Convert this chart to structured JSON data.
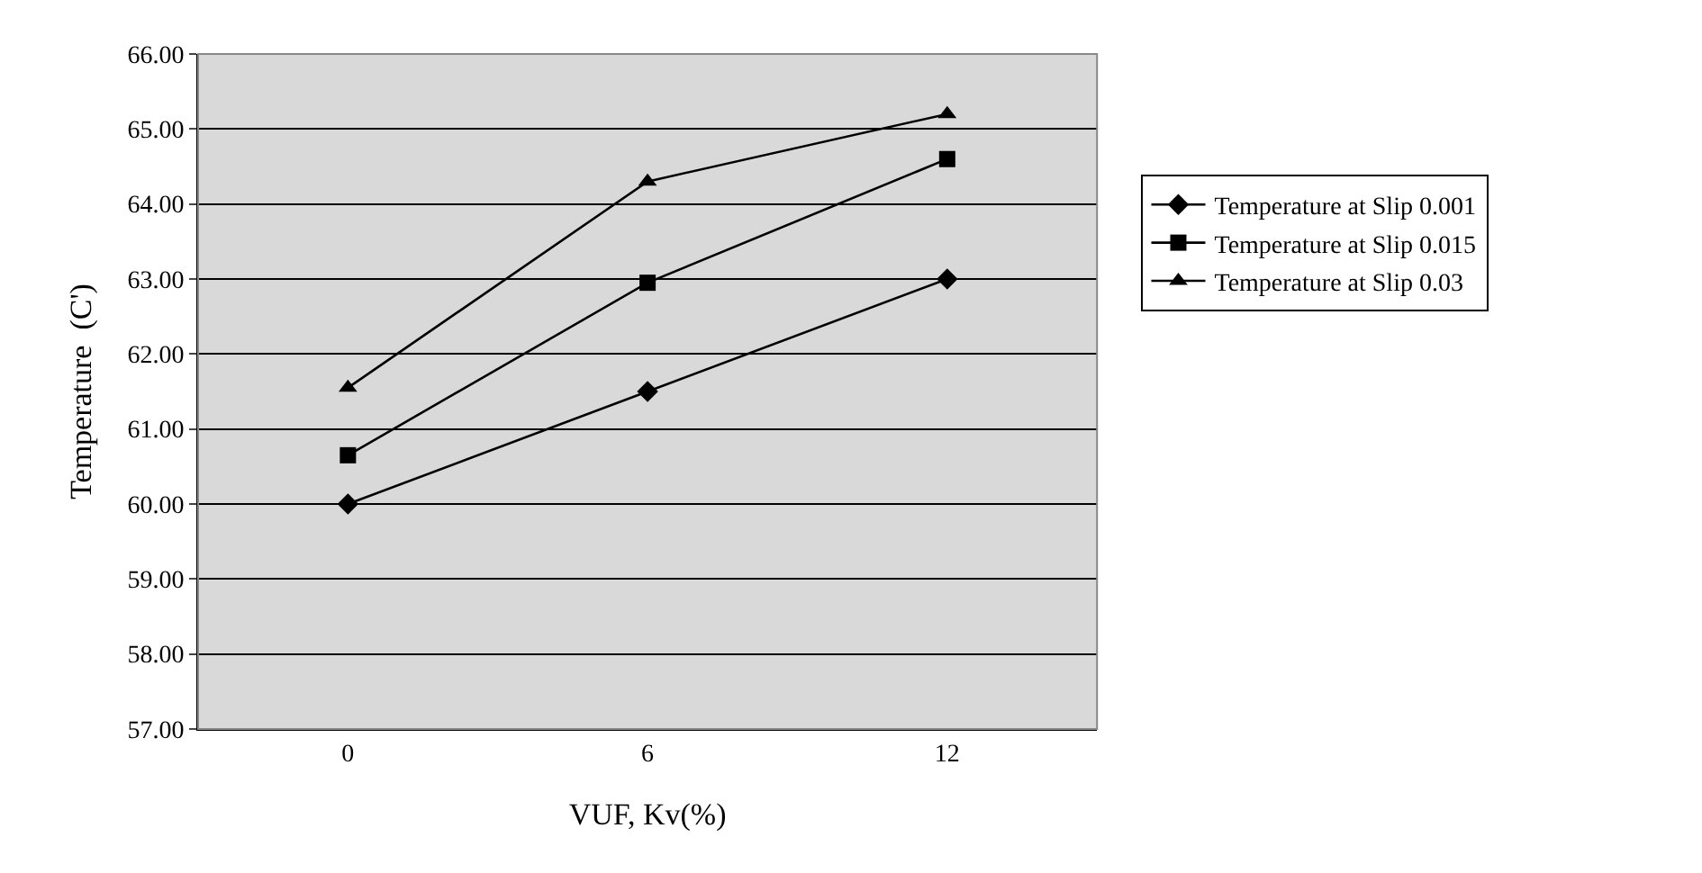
{
  "chart_data": {
    "type": "line",
    "xlabel": "VUF, Kv(%)",
    "ylabel": "Temperature  (C')",
    "categories": [
      "0",
      "6",
      "12"
    ],
    "series": [
      {
        "name": "Temperature at Slip 0.001",
        "color": "#000000",
        "marker": "diamond",
        "values": [
          60.0,
          61.5,
          63.0
        ]
      },
      {
        "name": "Temperature at Slip 0.015",
        "color": "#000000",
        "marker": "square",
        "values": [
          60.65,
          62.95,
          64.6
        ]
      },
      {
        "name": "Temperature at Slip 0.03",
        "color": "#000000",
        "marker": "triangle",
        "values": [
          61.55,
          64.3,
          65.2
        ]
      }
    ],
    "ylim": [
      57,
      66
    ],
    "yticks": [
      {
        "value": 57,
        "label": "57.00"
      },
      {
        "value": 58,
        "label": "58.00"
      },
      {
        "value": 59,
        "label": "59.00"
      },
      {
        "value": 60,
        "label": "60.00"
      },
      {
        "value": 61,
        "label": "61.00"
      },
      {
        "value": 62,
        "label": "62.00"
      },
      {
        "value": 63,
        "label": "63.00"
      },
      {
        "value": 64,
        "label": "64.00"
      },
      {
        "value": 65,
        "label": "65.00"
      },
      {
        "value": 66,
        "label": "66.00"
      }
    ],
    "grid": "y",
    "legend": "right",
    "line_style": "solid"
  }
}
